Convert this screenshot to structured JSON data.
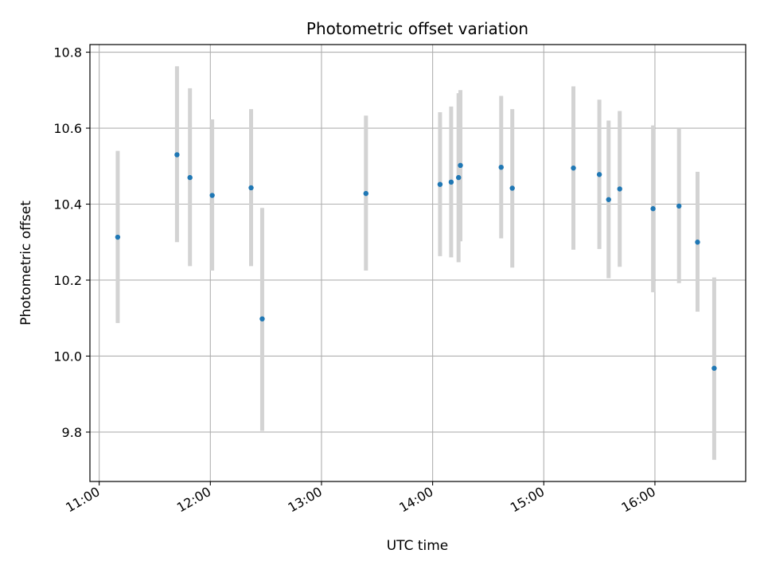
{
  "chart_data": {
    "type": "scatter",
    "title": "Photometric offset variation",
    "xlabel": "UTC time",
    "ylabel": "Photometric offset",
    "x_axis_type": "time",
    "xlim": [
      "10:55",
      "16:49"
    ],
    "ylim": [
      9.67,
      10.82
    ],
    "grid": true,
    "x_ticks": [
      "11:00",
      "12:00",
      "13:00",
      "14:00",
      "15:00",
      "16:00"
    ],
    "y_ticks": [
      "9.8",
      "10.0",
      "10.2",
      "10.4",
      "10.6",
      "10.8"
    ],
    "colors": {
      "points": "#1f77b4",
      "errorbars": "#d3d3d3",
      "grid": "#b0b0b0"
    },
    "points": [
      {
        "x": "11:10",
        "y": 10.313,
        "low": 10.087,
        "high": 10.54
      },
      {
        "x": "11:42",
        "y": 10.53,
        "low": 10.3,
        "high": 10.763
      },
      {
        "x": "11:49",
        "y": 10.47,
        "low": 10.237,
        "high": 10.705
      },
      {
        "x": "12:01",
        "y": 10.423,
        "low": 10.225,
        "high": 10.623
      },
      {
        "x": "12:22",
        "y": 10.443,
        "low": 10.237,
        "high": 10.65
      },
      {
        "x": "12:28",
        "y": 10.098,
        "low": 9.803,
        "high": 10.39
      },
      {
        "x": "13:24",
        "y": 10.428,
        "low": 10.225,
        "high": 10.633
      },
      {
        "x": "14:04",
        "y": 10.452,
        "low": 10.263,
        "high": 10.642
      },
      {
        "x": "14:10",
        "y": 10.458,
        "low": 10.26,
        "high": 10.657
      },
      {
        "x": "14:14",
        "y": 10.47,
        "low": 10.247,
        "high": 10.692
      },
      {
        "x": "14:15",
        "y": 10.502,
        "low": 10.302,
        "high": 10.7
      },
      {
        "x": "14:37",
        "y": 10.497,
        "low": 10.31,
        "high": 10.685
      },
      {
        "x": "14:43",
        "y": 10.442,
        "low": 10.233,
        "high": 10.65
      },
      {
        "x": "15:16",
        "y": 10.495,
        "low": 10.28,
        "high": 10.71
      },
      {
        "x": "15:30",
        "y": 10.478,
        "low": 10.282,
        "high": 10.675
      },
      {
        "x": "15:35",
        "y": 10.412,
        "low": 10.205,
        "high": 10.62
      },
      {
        "x": "15:41",
        "y": 10.44,
        "low": 10.235,
        "high": 10.645
      },
      {
        "x": "15:59",
        "y": 10.388,
        "low": 10.168,
        "high": 10.607
      },
      {
        "x": "16:13",
        "y": 10.395,
        "low": 10.192,
        "high": 10.598
      },
      {
        "x": "16:23",
        "y": 10.3,
        "low": 10.117,
        "high": 10.485
      },
      {
        "x": "16:32",
        "y": 9.968,
        "low": 9.727,
        "high": 10.207
      }
    ]
  }
}
